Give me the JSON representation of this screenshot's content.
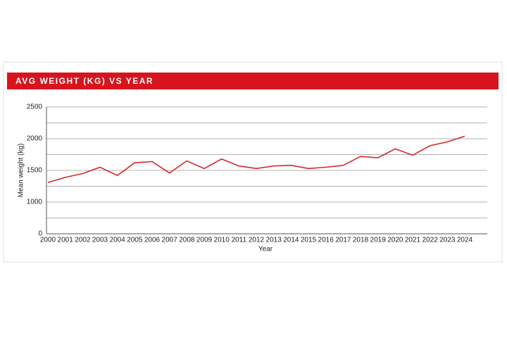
{
  "chart_data": {
    "type": "line",
    "title": "AVG WEIGHT (KG) VS YEAR",
    "x_label": "Year",
    "y_label": "Mean weight (kg)",
    "categories": [
      "2000",
      "2001",
      "2002",
      "2003",
      "2004",
      "2005",
      "2006",
      "2007",
      "2008",
      "2009",
      "2010",
      "2011",
      "2012",
      "2013",
      "2014",
      "2015",
      "2016",
      "2017",
      "2018",
      "2019",
      "2020",
      "2021",
      "2022",
      "2023",
      "2024"
    ],
    "series": [
      {
        "name": "Mean weight (kg)",
        "color": "#d42a2a",
        "values": [
          1310,
          1390,
          1450,
          1550,
          1420,
          1620,
          1640,
          1460,
          1650,
          1530,
          1680,
          1570,
          1530,
          1570,
          1580,
          1530,
          1550,
          1580,
          1720,
          1700,
          1840,
          1740,
          1890,
          1950,
          2040
        ]
      }
    ],
    "ylim": [
      500,
      2500
    ],
    "yticks": [
      {
        "value": 500,
        "label": "0"
      },
      1000,
      1500,
      2000,
      2500
    ],
    "minor_yticks": [
      750,
      1250,
      1750,
      2250
    ],
    "grid": true,
    "header_color": "#d7141e"
  }
}
